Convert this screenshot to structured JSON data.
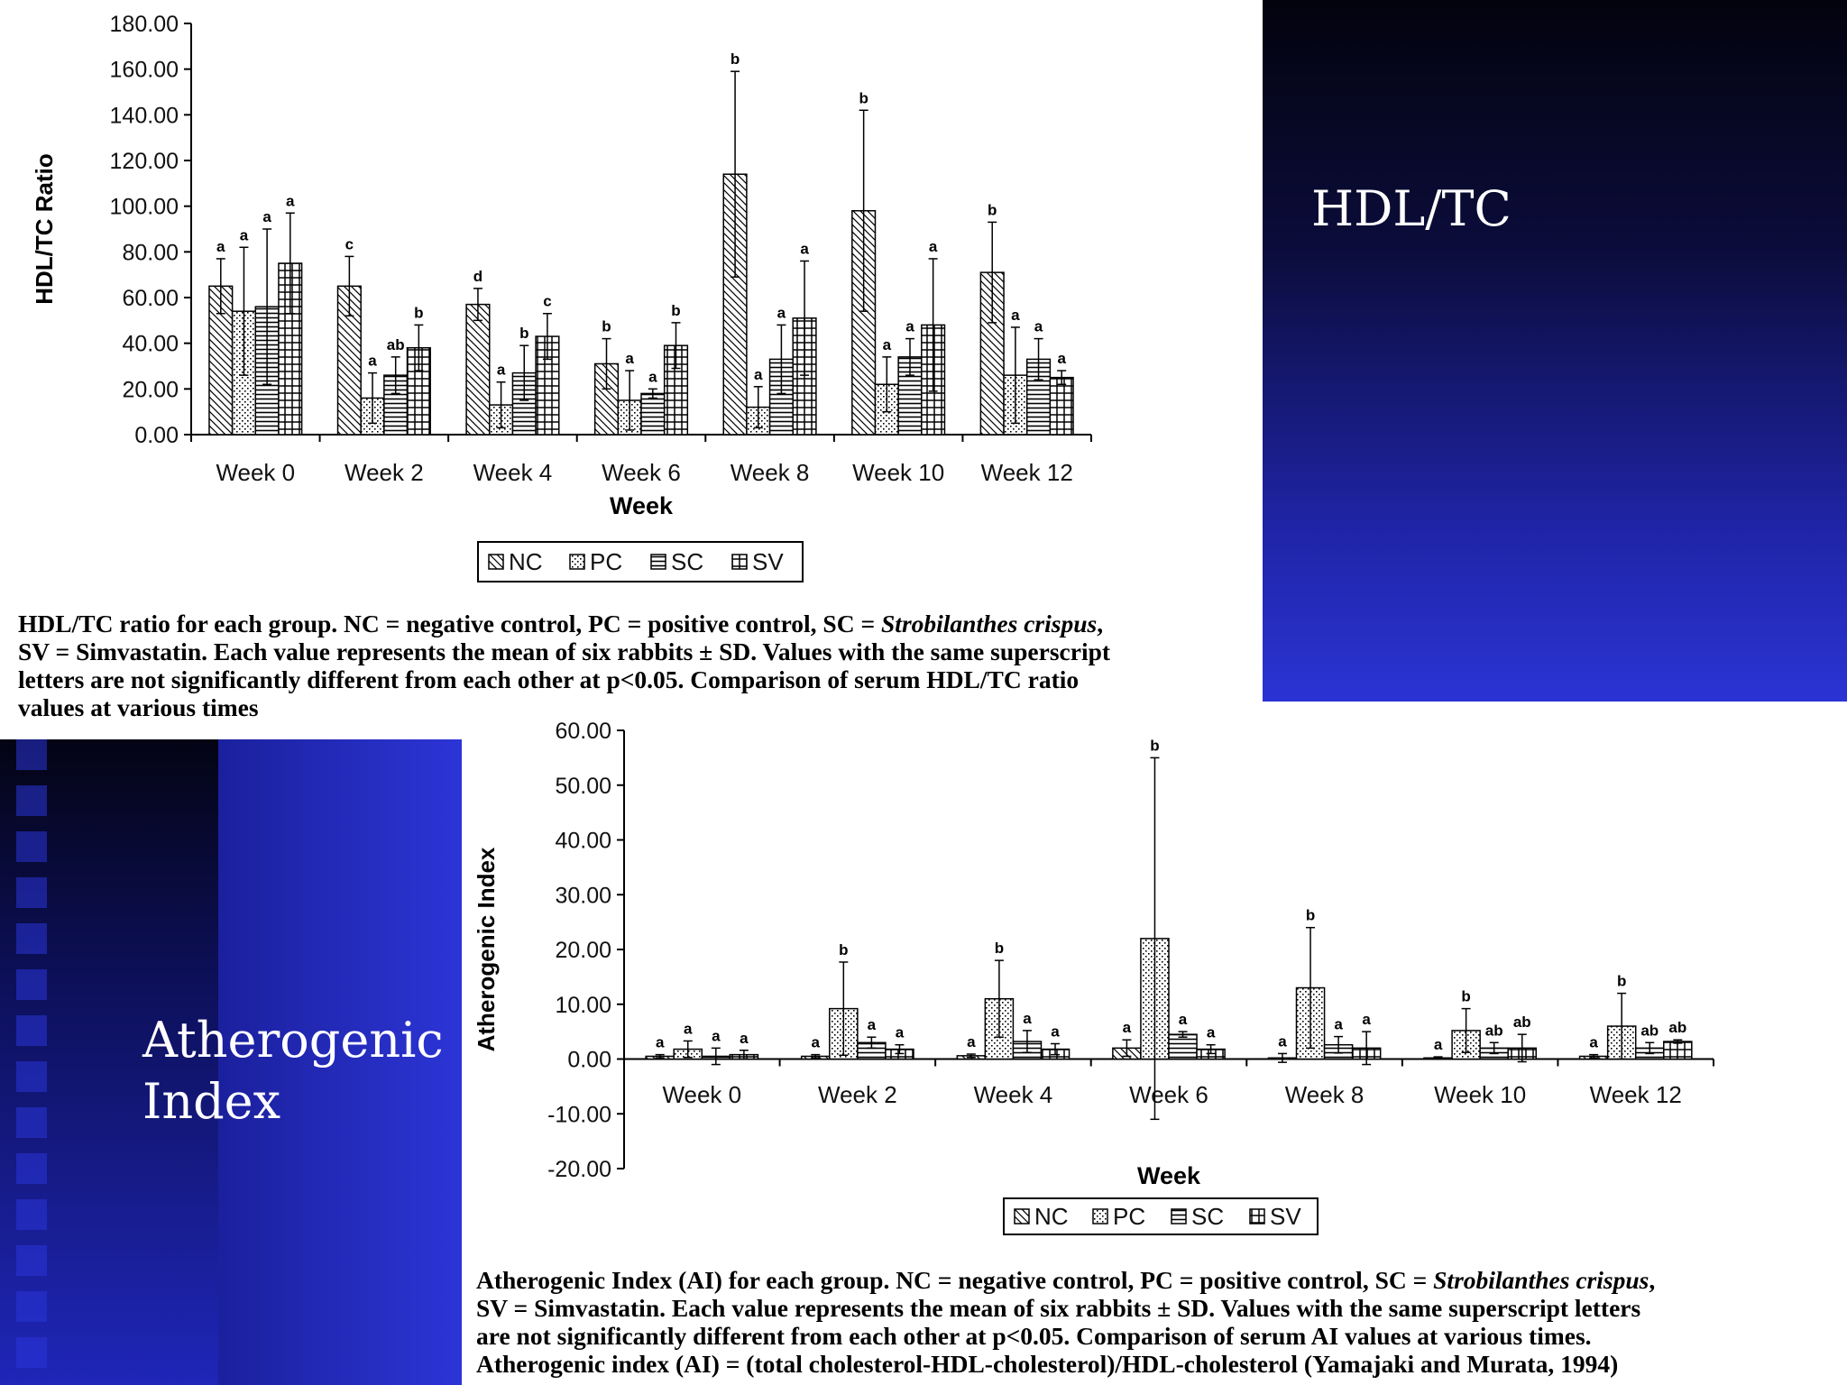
{
  "titles": {
    "hdl": "HDL/TC",
    "ai_line1": "Atherogenic",
    "ai_line2": "Index"
  },
  "captions": {
    "hdl": {
      "line1_pre": "HDL/TC ratio for each group. NC = negative control, PC = positive control, SC = ",
      "line1_species": "Strobilanthes crispus",
      "line1_post": ",",
      "line2": "SV = Simvastatin. Each value represents the mean of six rabbits ± SD. Values with the same superscript",
      "line3": "letters are not significantly different from each other at p<0.05. Comparison of serum HDL/TC ratio",
      "line4": "values at various times"
    },
    "ai": {
      "line1_pre": "Atherogenic Index (AI) for each group. NC = negative control, PC = positive control, SC = ",
      "line1_species": "Strobilanthes crispus",
      "line1_post": ",",
      "line2": "SV = Simvastatin. Each value represents the mean of six rabbits ± SD. Values with the same superscript letters",
      "line3": "are not significantly different from each other at p<0.05. Comparison of serum AI values at various times.",
      "line4": "Atherogenic index (AI) = (total cholesterol-HDL-cholesterol)/HDL-cholesterol (Yamajaki and Murata, 1994)"
    }
  },
  "colors": {
    "bar_fill": "#ffffff",
    "bar_stroke": "#000000",
    "panel_blue": "#2b34d4",
    "panel_dark": "#03030e"
  },
  "chart_data": [
    {
      "type": "bar",
      "ylabel": "HDL/TC Ratio",
      "xlabel": "Week",
      "ylim": [
        0,
        180
      ],
      "yticks": [
        "0.00",
        "20.00",
        "40.00",
        "60.00",
        "80.00",
        "100.00",
        "120.00",
        "140.00",
        "160.00",
        "180.00"
      ],
      "categories": [
        "Week 0",
        "Week 2",
        "Week 4",
        "Week 6",
        "Week 8",
        "Week 10",
        "Week 12"
      ],
      "legend": [
        "NC",
        "PC",
        "SC",
        "SV"
      ],
      "grid": false,
      "series": [
        {
          "name": "NC",
          "pattern": "diag",
          "values": [
            65,
            65,
            57,
            31,
            114,
            98,
            71
          ],
          "err": [
            12,
            13,
            7,
            11,
            45,
            44,
            22
          ],
          "labels": [
            "a",
            "c",
            "d",
            "b",
            "b",
            "b",
            "b"
          ]
        },
        {
          "name": "PC",
          "pattern": "dots",
          "values": [
            54,
            16,
            13,
            15,
            12,
            22,
            26
          ],
          "err": [
            28,
            11,
            10,
            13,
            9,
            12,
            21
          ],
          "labels": [
            "a",
            "a",
            "a",
            "a",
            "a",
            "a",
            "a"
          ]
        },
        {
          "name": "SC",
          "pattern": "hlines",
          "values": [
            56,
            26,
            27,
            18,
            33,
            34,
            33
          ],
          "err": [
            34,
            8,
            12,
            2,
            15,
            8,
            9
          ],
          "labels": [
            "a",
            "ab",
            "b",
            "a",
            "a",
            "a",
            "a"
          ]
        },
        {
          "name": "SV",
          "pattern": "grid",
          "values": [
            75,
            38,
            43,
            39,
            51,
            48,
            25
          ],
          "err": [
            22,
            10,
            10,
            10,
            25,
            29,
            3
          ],
          "labels": [
            "a",
            "b",
            "c",
            "b",
            "a",
            "a",
            "a"
          ]
        }
      ]
    },
    {
      "type": "bar",
      "ylabel": "Atherogenic Index",
      "xlabel": "Week",
      "ylim": [
        -20,
        60
      ],
      "yticks": [
        "-20.00",
        "-10.00",
        "0.00",
        "10.00",
        "20.00",
        "30.00",
        "40.00",
        "50.00",
        "60.00"
      ],
      "categories": [
        "Week 0",
        "Week 2",
        "Week 4",
        "Week 6",
        "Week 8",
        "Week 10",
        "Week 12"
      ],
      "legend": [
        "NC",
        "PC",
        "SC",
        "SV"
      ],
      "grid": false,
      "series": [
        {
          "name": "NC",
          "pattern": "diag",
          "values": [
            0.5,
            0.5,
            0.6,
            2,
            0.2,
            0.2,
            0.5
          ],
          "err": [
            0.3,
            0.3,
            0.3,
            1.5,
            0.8,
            0.2,
            0.3
          ],
          "labels": [
            "a",
            "a",
            "a",
            "a",
            "a",
            "a",
            "a"
          ]
        },
        {
          "name": "PC",
          "pattern": "dots",
          "values": [
            1.8,
            9.2,
            11,
            22,
            13,
            5.2,
            6
          ],
          "err": [
            1.5,
            8.5,
            7,
            33,
            11,
            4,
            6
          ],
          "labels": [
            "a",
            "b",
            "b",
            "b",
            "b",
            "b",
            "b"
          ]
        },
        {
          "name": "SC",
          "pattern": "hlines",
          "values": [
            0.5,
            3,
            3.2,
            4.5,
            2.6,
            2,
            2
          ],
          "err": [
            1.5,
            1,
            2,
            0.5,
            1.5,
            1,
            1
          ],
          "labels": [
            "a",
            "a",
            "a",
            "a",
            "a",
            "ab",
            "ab"
          ]
        },
        {
          "name": "SV",
          "pattern": "grid",
          "values": [
            0.8,
            1.8,
            1.8,
            1.8,
            2,
            2,
            3.2
          ],
          "err": [
            0.8,
            0.8,
            1,
            0.8,
            3,
            2.5,
            0.3
          ],
          "labels": [
            "a",
            "a",
            "a",
            "a",
            "a",
            "ab",
            "ab"
          ]
        }
      ]
    }
  ]
}
